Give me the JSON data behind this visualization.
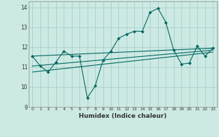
{
  "xlabel": "Humidex (Indice chaleur)",
  "xlim": [
    -0.5,
    23.5
  ],
  "ylim": [
    9,
    14.3
  ],
  "yticks": [
    9,
    10,
    11,
    12,
    13,
    14
  ],
  "xticks": [
    0,
    1,
    2,
    3,
    4,
    5,
    6,
    7,
    8,
    9,
    10,
    11,
    12,
    13,
    14,
    15,
    16,
    17,
    18,
    19,
    20,
    21,
    22,
    23
  ],
  "bg_color": "#cce9e3",
  "grid_color": "#aacfc9",
  "line_color": "#006660",
  "main_line_x": [
    0,
    1,
    2,
    3,
    4,
    5,
    6,
    7,
    8,
    9,
    10,
    11,
    12,
    13,
    14,
    15,
    16,
    17,
    18,
    19,
    20,
    21,
    22,
    23
  ],
  "main_line_y": [
    11.55,
    11.05,
    10.75,
    11.25,
    11.8,
    11.55,
    11.55,
    9.45,
    10.05,
    11.35,
    11.8,
    12.45,
    12.65,
    12.8,
    12.8,
    13.75,
    13.95,
    13.25,
    11.85,
    11.15,
    11.2,
    12.05,
    11.55,
    11.95
  ],
  "trend1_x": [
    0,
    23
  ],
  "trend1_y": [
    11.55,
    11.95
  ],
  "trend2_x": [
    0,
    23
  ],
  "trend2_y": [
    11.05,
    11.85
  ],
  "trend3_x": [
    0,
    23
  ],
  "trend3_y": [
    10.75,
    11.75
  ]
}
